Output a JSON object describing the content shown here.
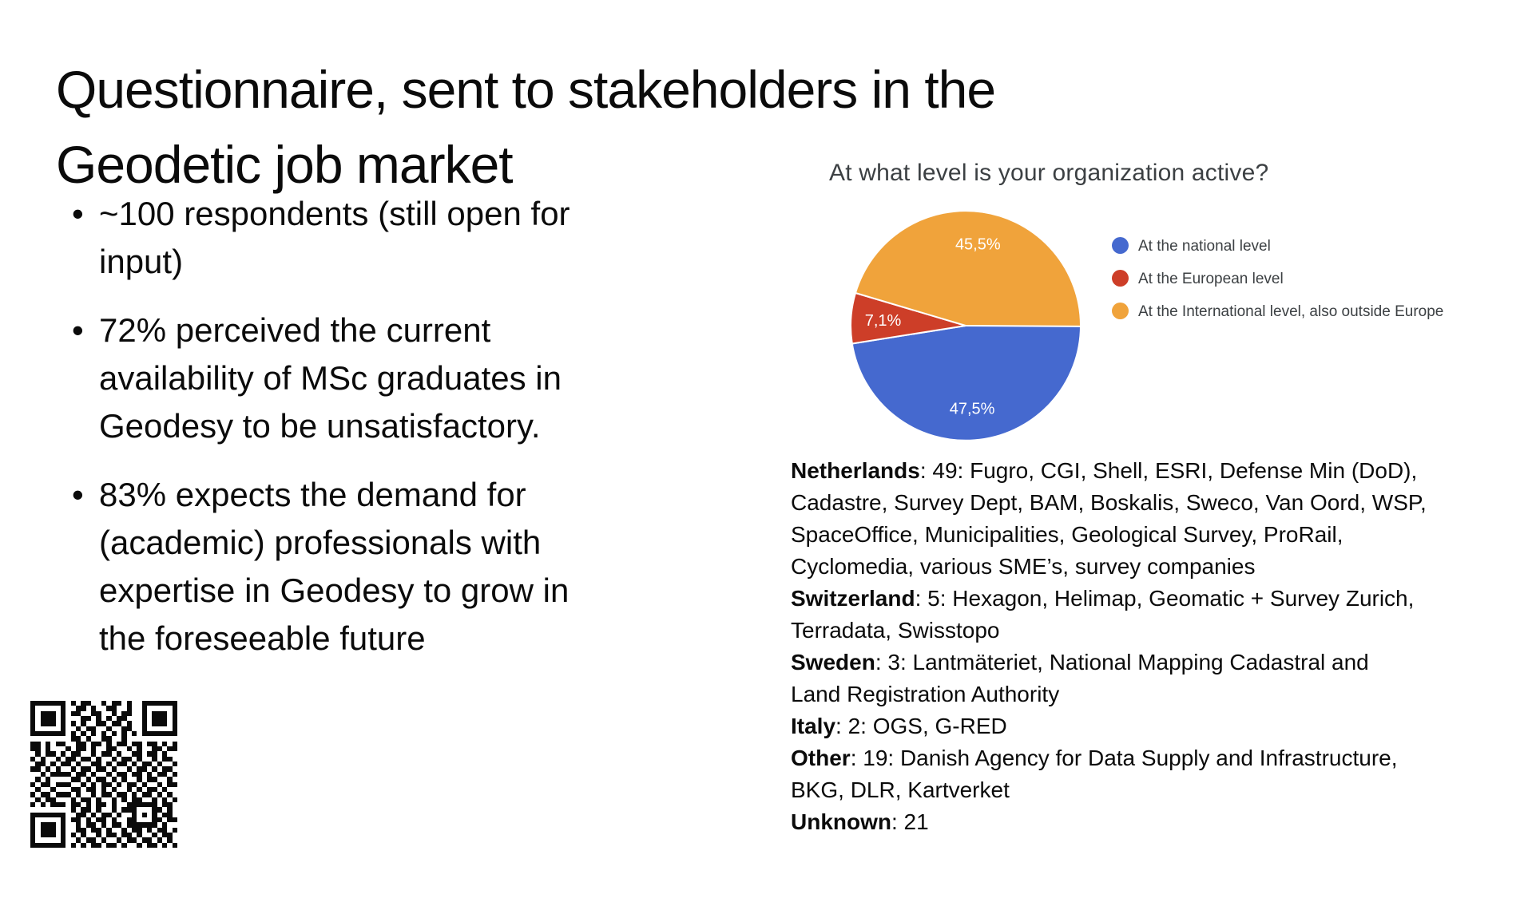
{
  "slide": {
    "title": "Questionnaire, sent to stakeholders in the\nGeodetic job market",
    "bullets": [
      "~100 respondents (still open for\ninput)",
      "72% perceived the current\navailability of MSc graduates in\nGeodesy to be unsatisfactory.",
      "83% expects the demand for\n(academic) professionals with\nexpertise in Geodesy to grow in\nthe foreseeable future"
    ]
  },
  "chart_data": {
    "type": "pie",
    "title": "At what level is your organization active?",
    "legend_position": "right",
    "start_angle": "east",
    "direction": "clockwise",
    "slices": [
      {
        "name": "At the national level",
        "value": 47.5,
        "label": "47,5%",
        "color": "#4569cf"
      },
      {
        "name": "At the European level",
        "value": 7.1,
        "label": "7,1%",
        "color": "#cd3e28"
      },
      {
        "name": "At the International level, also outside Europe",
        "value": 45.5,
        "label": "45,5%",
        "color": "#f0a33b"
      }
    ]
  },
  "org_list": {
    "entries": [
      {
        "label": "Netherlands",
        "text": ": 49: Fugro, CGI, Shell, ESRI,  Defense Min (DoD),\nCadastre, Survey Dept, BAM, Boskalis, Sweco, Van Oord, WSP,\nSpaceOffice, Municipalities, Geological Survey, ProRail,\nCyclomedia, various SME’s, survey companies"
      },
      {
        "label": "Switzerland",
        "text": ": 5: Hexagon, Helimap, Geomatic + Survey Zurich,\nTerradata, Swisstopo"
      },
      {
        "label": "Sweden",
        "text": ": 3:  Lantmäteriet, National Mapping Cadastral and\nLand Registration Authority"
      },
      {
        "label": "Italy",
        "text": ": 2: OGS, G-RED"
      },
      {
        "label": "Other",
        "text": ": 19: Danish Agency for Data Supply and Infrastructure,\nBKG, DLR, Kartverket"
      },
      {
        "label": "Unknown",
        "text": ": 21"
      }
    ]
  },
  "qr": {
    "rows": [
      "11111110101100101101001111111",
      "10000010011010011001001000001",
      "10111010110011001011001011101",
      "10111010001101010110001011101",
      "10111010101001101101001011101",
      "10000010010110010011001000001",
      "11111110101010101010101111111",
      "00000000110100110010000000000",
      "11010110011011010110110110101",
      "11010001011010011001010011011",
      "01011010110010110100110110100",
      "10100101101101001011010010110",
      "01101011010011010110101101001",
      "11010100101101101001011010110",
      "00101111011010010110110101101",
      "01010000110101101010010110010",
      "10110111001010110101101001011",
      "01001000110110101001010110100",
      "10110111010010110110101101010",
      "01011000101101001010110010101",
      "10101110110101101001111110110",
      "00000000101101001011100011010",
      "11111110011010110100101010110",
      "10000010110101101001100011011",
      "10111010010110101101111110100",
      "10111010011011010010110101101",
      "10111010101001011011010010110",
      "10000010010110100101101101010",
      "11111110101011011010010110101"
    ]
  }
}
